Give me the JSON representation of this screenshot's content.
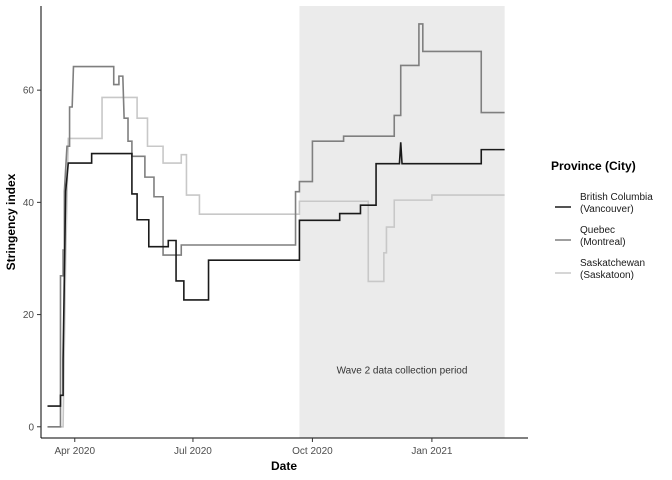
{
  "chart_data": {
    "type": "line",
    "xlabel": "Date",
    "ylabel": "Stringency index",
    "x_ticks": [
      "2020-04-01",
      "2020-07-01",
      "2020-10-01",
      "2021-01-01"
    ],
    "x_tick_labels": [
      "Apr 2020",
      "Jul 2020",
      "Oct 2020",
      "Jan 2021"
    ],
    "xlim": [
      "2020-03-06",
      "2021-03-16"
    ],
    "ylim": [
      -2,
      75
    ],
    "y_ticks": [
      0,
      20,
      40,
      60
    ],
    "y_tick_labels": [
      "0",
      "20",
      "40",
      "60"
    ],
    "grid": false,
    "legend": {
      "title": "Province (City)",
      "position": "right",
      "entries": [
        {
          "line1": "British Columbia",
          "line2": "(Vancouver)"
        },
        {
          "line1": "Quebec",
          "line2": "(Montreal)"
        },
        {
          "line1": "Saskatchewan",
          "line2": "(Saskatoon)"
        }
      ]
    },
    "shaded_region": {
      "x_start": "2020-09-21",
      "x_end": "2021-02-26",
      "label": "Wave 2 data collection period",
      "label_y": 10,
      "color": "#ebebeb"
    },
    "series": [
      {
        "name": "British Columbia (Vancouver)",
        "color": "#1a1a1a",
        "points": [
          [
            "2020-03-11",
            3.7
          ],
          [
            "2020-03-21",
            3.7
          ],
          [
            "2020-03-21",
            5.6
          ],
          [
            "2020-03-23",
            5.6
          ],
          [
            "2020-03-23",
            12.0
          ],
          [
            "2020-03-24",
            27.0
          ],
          [
            "2020-03-25",
            42.0
          ],
          [
            "2020-03-27",
            47.0
          ],
          [
            "2020-04-14",
            47.0
          ],
          [
            "2020-04-14",
            48.7
          ],
          [
            "2020-05-15",
            48.7
          ],
          [
            "2020-05-15",
            41.5
          ],
          [
            "2020-05-19",
            41.5
          ],
          [
            "2020-05-19",
            36.9
          ],
          [
            "2020-05-28",
            36.9
          ],
          [
            "2020-05-28",
            32.1
          ],
          [
            "2020-06-12",
            32.1
          ],
          [
            "2020-06-12",
            33.2
          ],
          [
            "2020-06-18",
            33.2
          ],
          [
            "2020-06-18",
            26.0
          ],
          [
            "2020-06-24",
            26.0
          ],
          [
            "2020-06-24",
            22.6
          ],
          [
            "2020-07-13",
            22.6
          ],
          [
            "2020-07-13",
            29.7
          ],
          [
            "2020-09-21",
            29.7
          ],
          [
            "2020-09-21",
            36.8
          ],
          [
            "2020-10-22",
            36.8
          ],
          [
            "2020-10-22",
            38.0
          ],
          [
            "2020-10-27",
            38.0
          ],
          [
            "2020-10-27",
            38.0
          ],
          [
            "2020-11-07",
            38.0
          ],
          [
            "2020-11-07",
            39.5
          ],
          [
            "2020-11-19",
            39.5
          ],
          [
            "2020-11-19",
            46.9
          ],
          [
            "2020-12-07",
            46.9
          ],
          [
            "2020-12-08",
            50.7
          ],
          [
            "2020-12-09",
            46.9
          ],
          [
            "2021-02-08",
            46.9
          ],
          [
            "2021-02-08",
            49.4
          ],
          [
            "2021-02-26",
            49.4
          ]
        ]
      },
      {
        "name": "Quebec (Montreal)",
        "color": "#7f7f7f",
        "points": [
          [
            "2020-03-11",
            0
          ],
          [
            "2020-03-21",
            0
          ],
          [
            "2020-03-21",
            26.9
          ],
          [
            "2020-03-23",
            26.9
          ],
          [
            "2020-03-23",
            31.5
          ],
          [
            "2020-03-24",
            31.5
          ],
          [
            "2020-03-24",
            42.0
          ],
          [
            "2020-03-26",
            50.0
          ],
          [
            "2020-03-28",
            50.0
          ],
          [
            "2020-03-28",
            57.0
          ],
          [
            "2020-03-30",
            57.0
          ],
          [
            "2020-03-31",
            64.2
          ],
          [
            "2020-05-01",
            64.2
          ],
          [
            "2020-05-01",
            61.0
          ],
          [
            "2020-05-05",
            61.0
          ],
          [
            "2020-05-05",
            62.5
          ],
          [
            "2020-05-08",
            62.5
          ],
          [
            "2020-05-09",
            55.0
          ],
          [
            "2020-05-12",
            55.0
          ],
          [
            "2020-05-12",
            50.9
          ],
          [
            "2020-05-15",
            50.9
          ],
          [
            "2020-05-15",
            48.2
          ],
          [
            "2020-05-25",
            48.2
          ],
          [
            "2020-05-25",
            44.5
          ],
          [
            "2020-06-01",
            44.5
          ],
          [
            "2020-06-01",
            41.0
          ],
          [
            "2020-06-08",
            41.0
          ],
          [
            "2020-06-08",
            30.6
          ],
          [
            "2020-06-22",
            30.6
          ],
          [
            "2020-06-22",
            32.4
          ],
          [
            "2020-09-18",
            32.4
          ],
          [
            "2020-09-18",
            41.9
          ],
          [
            "2020-09-21",
            41.9
          ],
          [
            "2020-09-21",
            43.7
          ],
          [
            "2020-10-01",
            43.7
          ],
          [
            "2020-10-01",
            50.9
          ],
          [
            "2020-10-25",
            50.9
          ],
          [
            "2020-10-25",
            51.8
          ],
          [
            "2020-12-03",
            51.8
          ],
          [
            "2020-12-03",
            55.5
          ],
          [
            "2020-12-08",
            55.5
          ],
          [
            "2020-12-08",
            64.4
          ],
          [
            "2020-12-22",
            64.4
          ],
          [
            "2020-12-22",
            71.8
          ],
          [
            "2020-12-25",
            71.8
          ],
          [
            "2020-12-25",
            66.9
          ],
          [
            "2021-02-08",
            66.9
          ],
          [
            "2021-02-08",
            56.0
          ],
          [
            "2021-02-26",
            56.0
          ]
        ]
      },
      {
        "name": "Saskatchewan (Saskatoon)",
        "color": "#c8c8c8",
        "points": [
          [
            "2020-03-11",
            0
          ],
          [
            "2020-03-23",
            0
          ],
          [
            "2020-03-25",
            30.0
          ],
          [
            "2020-03-27",
            51.4
          ],
          [
            "2020-04-22",
            51.4
          ],
          [
            "2020-04-22",
            58.7
          ],
          [
            "2020-05-19",
            58.7
          ],
          [
            "2020-05-19",
            55.0
          ],
          [
            "2020-05-27",
            55.0
          ],
          [
            "2020-05-27",
            50.0
          ],
          [
            "2020-06-08",
            50.0
          ],
          [
            "2020-06-08",
            47.0
          ],
          [
            "2020-06-22",
            47.0
          ],
          [
            "2020-06-22",
            48.5
          ],
          [
            "2020-06-26",
            48.5
          ],
          [
            "2020-06-26",
            41.3
          ],
          [
            "2020-07-06",
            41.3
          ],
          [
            "2020-07-06",
            37.9
          ],
          [
            "2020-09-21",
            37.9
          ],
          [
            "2020-09-21",
            40.2
          ],
          [
            "2020-11-13",
            40.2
          ],
          [
            "2020-11-13",
            25.9
          ],
          [
            "2020-11-25",
            25.9
          ],
          [
            "2020-11-25",
            31.0
          ],
          [
            "2020-11-27",
            31.0
          ],
          [
            "2020-11-27",
            35.6
          ],
          [
            "2020-12-03",
            35.6
          ],
          [
            "2020-12-03",
            40.4
          ],
          [
            "2021-01-01",
            40.4
          ],
          [
            "2021-01-01",
            41.3
          ],
          [
            "2021-02-26",
            41.3
          ]
        ]
      }
    ]
  }
}
